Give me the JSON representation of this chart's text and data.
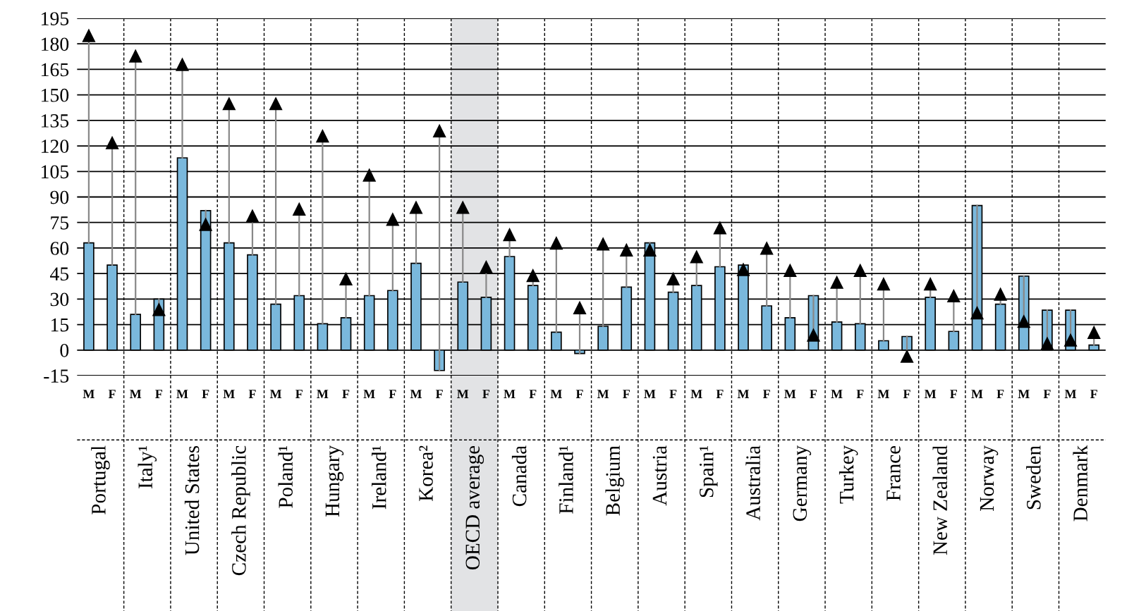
{
  "chart_data": {
    "type": "bar",
    "categories": [
      "M",
      "F",
      "M",
      "F",
      "M",
      "F",
      "M",
      "F",
      "M",
      "F",
      "M",
      "F",
      "M",
      "F",
      "M",
      "F",
      "M",
      "F",
      "M",
      "F",
      "M",
      "F",
      "M",
      "F",
      "M",
      "F",
      "M",
      "F",
      "M",
      "F",
      "M",
      "F",
      "M",
      "F",
      "M",
      "F",
      "M",
      "F",
      "M",
      "F",
      "M",
      "F",
      "M",
      "F"
    ],
    "series": [
      {
        "color": "#7ab8dc",
        "values": [
          63,
          50,
          21,
          30,
          113,
          82,
          63,
          56,
          27,
          32,
          15.5,
          19,
          32,
          35,
          51,
          -12,
          40,
          31,
          55,
          38,
          10.5,
          -2,
          14,
          37,
          63,
          34,
          38,
          49,
          50,
          26,
          19,
          32,
          16.5,
          15.5,
          5.5,
          8,
          31,
          11,
          85,
          27,
          43.5,
          23.5,
          23.5,
          3
        ]
      },
      {
        "type": "scatter",
        "color": "#000000",
        "marker": "triangle",
        "values": [
          185,
          122,
          173,
          24,
          168,
          74,
          145,
          79,
          145,
          83,
          126,
          42,
          103,
          77,
          84,
          129,
          84,
          49,
          68,
          44,
          63,
          25,
          62.5,
          59,
          59,
          42,
          55,
          72,
          47.5,
          60,
          47,
          9,
          40,
          47,
          39,
          -3.5,
          39,
          32,
          22,
          33,
          17,
          4,
          6,
          10.5
        ],
        "errors": [
          [
            63,
            185
          ],
          [
            50,
            122
          ],
          [
            21,
            173
          ],
          [
            24,
            30
          ],
          [
            113,
            168
          ],
          [
            74,
            82
          ],
          [
            63,
            145
          ],
          [
            56,
            79
          ],
          [
            27,
            145
          ],
          [
            32,
            83
          ],
          [
            15.5,
            126
          ],
          [
            19,
            42
          ],
          [
            32,
            103
          ],
          [
            35,
            77
          ],
          [
            51,
            84
          ],
          [
            -12,
            129
          ],
          [
            40,
            84
          ],
          [
            31,
            49
          ],
          [
            55,
            68
          ],
          [
            38,
            44
          ],
          [
            10.5,
            63
          ],
          [
            -2,
            25
          ],
          [
            14,
            62.5
          ],
          [
            37,
            59
          ],
          [
            59,
            63
          ],
          [
            34,
            42
          ],
          [
            38,
            55
          ],
          [
            49,
            72
          ],
          [
            47.5,
            50
          ],
          [
            26,
            60
          ],
          [
            19,
            47
          ],
          [
            9,
            32
          ],
          [
            16.5,
            40
          ],
          [
            15.5,
            47
          ],
          [
            5.5,
            39
          ],
          [
            -3.5,
            8
          ],
          [
            31,
            39
          ],
          [
            11,
            32
          ],
          [
            22,
            85
          ],
          [
            27,
            33
          ],
          [
            17,
            43.5
          ],
          [
            4,
            23.5
          ],
          [
            6,
            23.5
          ],
          [
            3,
            10.5
          ]
        ]
      }
    ],
    "annotations": [
      "Portugal",
      "Italy¹",
      "United States",
      "Czech Republic",
      "Poland¹",
      "Hungary",
      "Ireland¹",
      "Korea²",
      "OECD average",
      "Canada",
      "Finland¹",
      "Belgium",
      "Austria",
      "Spain¹",
      "Australia",
      "Germany",
      "Turkey",
      "France",
      "New Zealand",
      "Norway",
      "Sweden",
      "Denmark"
    ],
    "ylim": [
      -15,
      195
    ],
    "yticks": [
      -15,
      0,
      15,
      30,
      45,
      60,
      75,
      90,
      105,
      120,
      135,
      150,
      165,
      180,
      195
    ],
    "grid": "y",
    "legend": false
  }
}
